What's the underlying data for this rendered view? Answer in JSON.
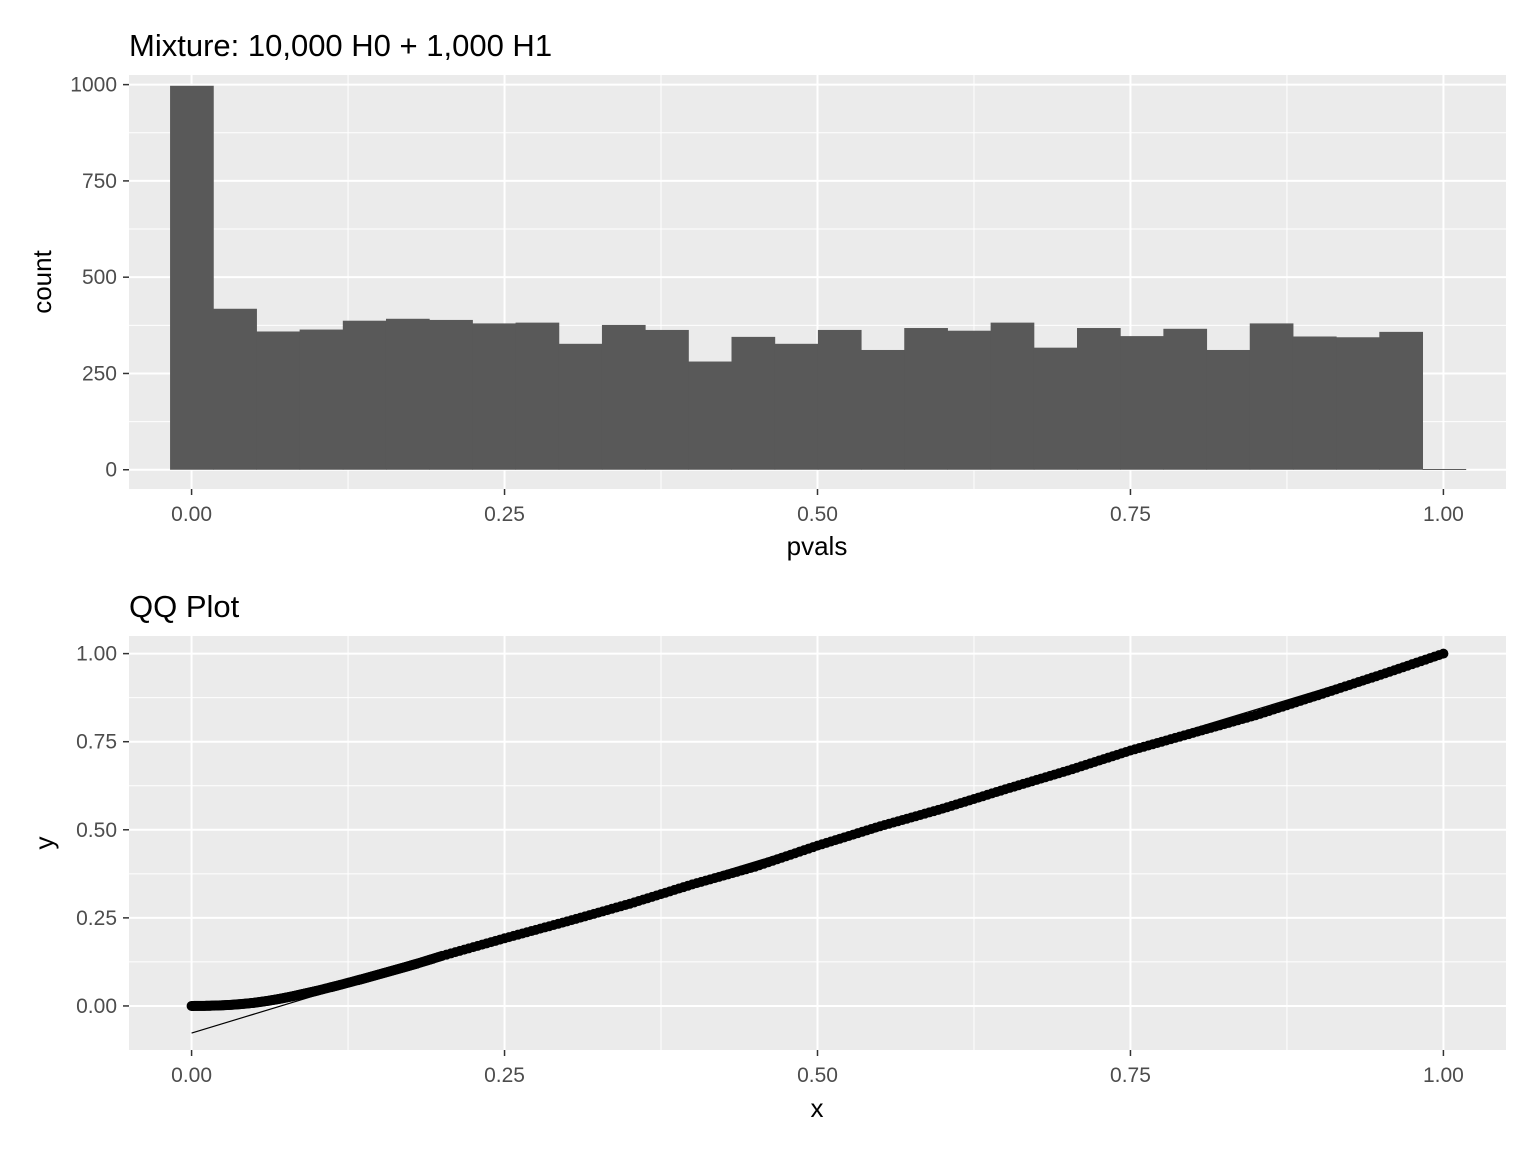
{
  "chart_data": [
    {
      "type": "bar",
      "title": "Mixture: 10,000 H0 + 1,000 H1",
      "xlabel": "pvals",
      "ylabel": "count",
      "xlim": [
        -0.05,
        1.05
      ],
      "ylim": [
        -50,
        1025
      ],
      "x_ticks": [
        0,
        0.25,
        0.5,
        0.75,
        1.0
      ],
      "x_tick_labels": [
        "0.00",
        "0.25",
        "0.50",
        "0.75",
        "1.00"
      ],
      "y_ticks": [
        0,
        250,
        500,
        750,
        1000
      ],
      "y_tick_labels": [
        "0",
        "250",
        "500",
        "750",
        "1000"
      ],
      "bin_width": 0.0345,
      "bin_start": -0.0172,
      "values": [
        997,
        418,
        359,
        364,
        387,
        392,
        389,
        380,
        382,
        327,
        376,
        363,
        281,
        345,
        327,
        363,
        311,
        368,
        361,
        382,
        317,
        368,
        347,
        366,
        311,
        380,
        346,
        344,
        358,
        2
      ],
      "bar_color": "#595959",
      "panel_color": "#ebebeb",
      "grid": true
    },
    {
      "type": "scatter",
      "title": "QQ Plot",
      "xlabel": "x",
      "ylabel": "y",
      "xlim": [
        -0.05,
        1.05
      ],
      "ylim": [
        -0.125,
        1.05
      ],
      "x_ticks": [
        0,
        0.25,
        0.5,
        0.75,
        1.0
      ],
      "x_tick_labels": [
        "0.00",
        "0.25",
        "0.50",
        "0.75",
        "1.00"
      ],
      "y_ticks": [
        0,
        0.25,
        0.5,
        0.75,
        1.0
      ],
      "y_tick_labels": [
        "0.00",
        "0.25",
        "0.50",
        "0.75",
        "1.00"
      ],
      "points": [
        [
          0.0,
          0.0
        ],
        [
          0.01,
          0.0003
        ],
        [
          0.02,
          0.0012
        ],
        [
          0.03,
          0.0028
        ],
        [
          0.04,
          0.0055
        ],
        [
          0.05,
          0.009
        ],
        [
          0.06,
          0.014
        ],
        [
          0.07,
          0.02
        ],
        [
          0.08,
          0.027
        ],
        [
          0.09,
          0.035
        ],
        [
          0.1,
          0.043
        ],
        [
          0.12,
          0.061
        ],
        [
          0.14,
          0.08
        ],
        [
          0.16,
          0.1
        ],
        [
          0.18,
          0.12
        ],
        [
          0.2,
          0.142
        ],
        [
          0.25,
          0.192
        ],
        [
          0.3,
          0.24
        ],
        [
          0.35,
          0.29
        ],
        [
          0.4,
          0.345
        ],
        [
          0.45,
          0.395
        ],
        [
          0.5,
          0.455
        ],
        [
          0.55,
          0.51
        ],
        [
          0.6,
          0.56
        ],
        [
          0.65,
          0.615
        ],
        [
          0.7,
          0.668
        ],
        [
          0.75,
          0.725
        ],
        [
          0.8,
          0.775
        ],
        [
          0.85,
          0.825
        ],
        [
          0.9,
          0.882
        ],
        [
          0.95,
          0.94
        ],
        [
          1.0,
          1.0
        ]
      ],
      "reference_line": {
        "slope": 1.08,
        "intercept": -0.077,
        "x_range": [
          0,
          1
        ]
      },
      "point_color": "#000000",
      "panel_color": "#ebebeb",
      "grid": true
    }
  ]
}
